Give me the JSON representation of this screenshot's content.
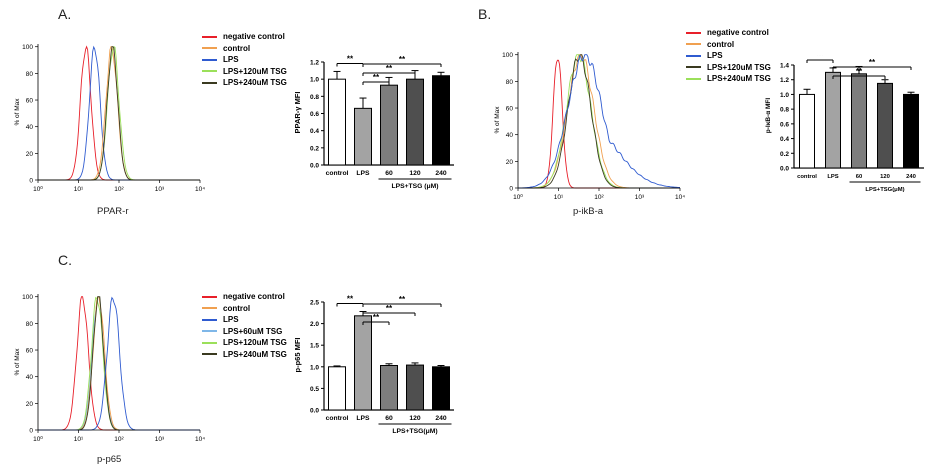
{
  "panels": [
    {
      "id": "A",
      "letter": "A.",
      "histogram": {
        "xlabel": "PPAR-r",
        "ylabel": "% of Max",
        "xticks": [
          "10⁰",
          "10¹",
          "10²",
          "10³",
          "10⁴"
        ],
        "yticks": [
          "0",
          "20",
          "40",
          "60",
          "80",
          "100"
        ],
        "legend": [
          {
            "label": "negative control",
            "color": "#e8202a"
          },
          {
            "label": "control",
            "color": "#f0a050"
          },
          {
            "label": "LPS",
            "color": "#2f5bd0"
          },
          {
            "label": "LPS+120uM TSG",
            "color": "#9be05a"
          },
          {
            "label": "LPS+240uM TSG",
            "color": "#3a3a20"
          }
        ],
        "curves": [
          {
            "color": "#e8202a",
            "peak": 1.18,
            "width": 0.13
          },
          {
            "color": "#2f5bd0",
            "peak": 1.4,
            "width": 0.13
          },
          {
            "color": "#f0a050",
            "peak": 1.82,
            "width": 0.14
          },
          {
            "color": "#9be05a",
            "peak": 1.86,
            "width": 0.14
          },
          {
            "color": "#3a3a20",
            "peak": 1.84,
            "width": 0.13
          }
        ]
      },
      "bar": {
        "ylabel": "PPAR-γ MFI",
        "yticks": [
          "0.0",
          "0.2",
          "0.4",
          "0.6",
          "0.8",
          "1.0",
          "1.2"
        ],
        "ymax": 1.2,
        "categories": [
          "control",
          "LPS",
          "60",
          "120",
          "240"
        ],
        "values": [
          1.0,
          0.66,
          0.93,
          1.0,
          1.04
        ],
        "errors": [
          0.09,
          0.12,
          0.09,
          0.1,
          0.04
        ],
        "group_label": "LPS+TSG (μM)",
        "sig": "**"
      }
    },
    {
      "id": "B",
      "letter": "B.",
      "histogram": {
        "xlabel": "p-ikB-a",
        "ylabel": "% of Max",
        "xticks": [
          "10⁰",
          "10¹",
          "10²",
          "10³",
          "10⁴"
        ],
        "yticks": [
          "0",
          "20",
          "40",
          "60",
          "80",
          "100"
        ],
        "legend": [
          {
            "label": "negative control",
            "color": "#e8202a"
          },
          {
            "label": "control",
            "color": "#f0a050"
          },
          {
            "label": "LPS",
            "color": "#2f5bd0"
          },
          {
            "label": "LPS+120uM TSG",
            "color": "#3a3a20"
          },
          {
            "label": "LPS+240uM TSG",
            "color": "#9be05a"
          }
        ],
        "curves": [
          {
            "color": "#e8202a",
            "peak": 0.98,
            "width": 0.11
          },
          {
            "color": "#f0a050",
            "peak": 1.55,
            "width": 0.32
          },
          {
            "color": "#9be05a",
            "peak": 1.5,
            "width": 0.3
          },
          {
            "color": "#3a3a20",
            "peak": 1.52,
            "width": 0.28
          },
          {
            "color": "#2f5bd0",
            "peak": 1.65,
            "width": 0.42,
            "tail": 1
          }
        ]
      },
      "bar": {
        "ylabel": "p-IκB-α MFI",
        "yticks": [
          "0.0",
          "0.2",
          "0.4",
          "0.6",
          "0.8",
          "1.0",
          "1.2",
          "1.4"
        ],
        "ymax": 1.4,
        "categories": [
          "control",
          "LPS",
          "60",
          "120",
          "240"
        ],
        "values": [
          1.0,
          1.3,
          1.28,
          1.15,
          1.0
        ],
        "errors": [
          0.07,
          0.06,
          0.1,
          0.05,
          0.03
        ],
        "group_label": "LPS+TSG(μM)",
        "sig": "**"
      }
    },
    {
      "id": "C",
      "letter": "C.",
      "histogram": {
        "xlabel": "p-p65",
        "ylabel": "% of Max",
        "xticks": [
          "10⁰",
          "10¹",
          "10²",
          "10³",
          "10⁴"
        ],
        "yticks": [
          "0",
          "20",
          "40",
          "60",
          "80",
          "100"
        ],
        "legend": [
          {
            "label": "negative control",
            "color": "#e8202a"
          },
          {
            "label": "control",
            "color": "#f0a050"
          },
          {
            "label": "LPS",
            "color": "#2f5bd0"
          },
          {
            "label": "LPS+60uM TSG",
            "color": "#7fb7e8"
          },
          {
            "label": "LPS+120uM TSG",
            "color": "#9be05a"
          },
          {
            "label": "LPS+240uM TSG",
            "color": "#3a3a20"
          }
        ],
        "curves": [
          {
            "color": "#e8202a",
            "peak": 1.1,
            "width": 0.14
          },
          {
            "color": "#7fb7e8",
            "peak": 1.48,
            "width": 0.14
          },
          {
            "color": "#f0a050",
            "peak": 1.5,
            "width": 0.14
          },
          {
            "color": "#9be05a",
            "peak": 1.46,
            "width": 0.14
          },
          {
            "color": "#3a3a20",
            "peak": 1.49,
            "width": 0.13
          },
          {
            "color": "#2f5bd0",
            "peak": 1.86,
            "width": 0.15
          }
        ]
      },
      "bar": {
        "ylabel": "p-p65 MFI",
        "yticks": [
          "0.0",
          "0.5",
          "1.0",
          "1.5",
          "2.0",
          "2.5"
        ],
        "ymax": 2.5,
        "categories": [
          "control",
          "LPS",
          "60",
          "120",
          "240"
        ],
        "values": [
          1.0,
          2.18,
          1.03,
          1.04,
          1.0
        ],
        "errors": [
          0.02,
          0.1,
          0.04,
          0.05,
          0.03
        ],
        "group_label": "LPS+TSG(μM)",
        "sig": "**"
      }
    }
  ],
  "chart_data": [
    {
      "type": "line",
      "title": "A.",
      "xlabel": "PPAR-r",
      "ylabel": "% of Max",
      "x_scale": "log",
      "xlim": [
        1,
        10000
      ],
      "ylim": [
        0,
        100
      ],
      "series": [
        {
          "name": "negative control",
          "peak_x": 15
        },
        {
          "name": "control",
          "peak_x": 66
        },
        {
          "name": "LPS",
          "peak_x": 25
        },
        {
          "name": "LPS+120uM TSG",
          "peak_x": 72
        },
        {
          "name": "LPS+240uM TSG",
          "peak_x": 69
        }
      ]
    },
    {
      "type": "bar",
      "title": "",
      "ylabel": "PPAR-γ MFI",
      "categories": [
        "control",
        "LPS",
        "60",
        "120",
        "240"
      ],
      "values": [
        1.0,
        0.66,
        0.93,
        1.0,
        1.04
      ],
      "errors": [
        0.09,
        0.12,
        0.09,
        0.1,
        0.04
      ],
      "ylim": [
        0,
        1.2
      ],
      "group_label": "LPS+TSG (μM)",
      "annotations": [
        "** control vs LPS",
        "** LPS vs 60",
        "** LPS vs 120",
        "** LPS vs 240"
      ]
    },
    {
      "type": "line",
      "title": "B.",
      "xlabel": "p-ikB-a",
      "ylabel": "% of Max",
      "x_scale": "log",
      "xlim": [
        1,
        10000
      ],
      "ylim": [
        0,
        100
      ],
      "series": [
        {
          "name": "negative control",
          "peak_x": 10
        },
        {
          "name": "control",
          "peak_x": 35
        },
        {
          "name": "LPS",
          "peak_x": 45
        },
        {
          "name": "LPS+120uM TSG",
          "peak_x": 33
        },
        {
          "name": "LPS+240uM TSG",
          "peak_x": 32
        }
      ]
    },
    {
      "type": "bar",
      "title": "",
      "ylabel": "p-IκB-α MFI",
      "categories": [
        "control",
        "LPS",
        "60",
        "120",
        "240"
      ],
      "values": [
        1.0,
        1.3,
        1.28,
        1.15,
        1.0
      ],
      "errors": [
        0.07,
        0.06,
        0.1,
        0.05,
        0.03
      ],
      "ylim": [
        0,
        1.4
      ],
      "group_label": "LPS+TSG(μM)",
      "annotations": [
        "** control vs LPS",
        "** LPS vs 120",
        "** LPS vs 240"
      ]
    },
    {
      "type": "line",
      "title": "C.",
      "xlabel": "p-p65",
      "ylabel": "% of Max",
      "x_scale": "log",
      "xlim": [
        1,
        10000
      ],
      "ylim": [
        0,
        100
      ],
      "series": [
        {
          "name": "negative control",
          "peak_x": 13
        },
        {
          "name": "control",
          "peak_x": 32
        },
        {
          "name": "LPS",
          "peak_x": 72
        },
        {
          "name": "LPS+60uM TSG",
          "peak_x": 30
        },
        {
          "name": "LPS+120uM TSG",
          "peak_x": 29
        },
        {
          "name": "LPS+240uM TSG",
          "peak_x": 31
        }
      ]
    },
    {
      "type": "bar",
      "title": "",
      "ylabel": "p-p65 MFI",
      "categories": [
        "control",
        "LPS",
        "60",
        "120",
        "240"
      ],
      "values": [
        1.0,
        2.18,
        1.03,
        1.04,
        1.0
      ],
      "errors": [
        0.02,
        0.1,
        0.04,
        0.05,
        0.03
      ],
      "ylim": [
        0,
        2.5
      ],
      "group_label": "LPS+TSG(μM)",
      "annotations": [
        "** control vs LPS",
        "** LPS vs 60",
        "** LPS vs 120",
        "** LPS vs 240"
      ]
    }
  ]
}
